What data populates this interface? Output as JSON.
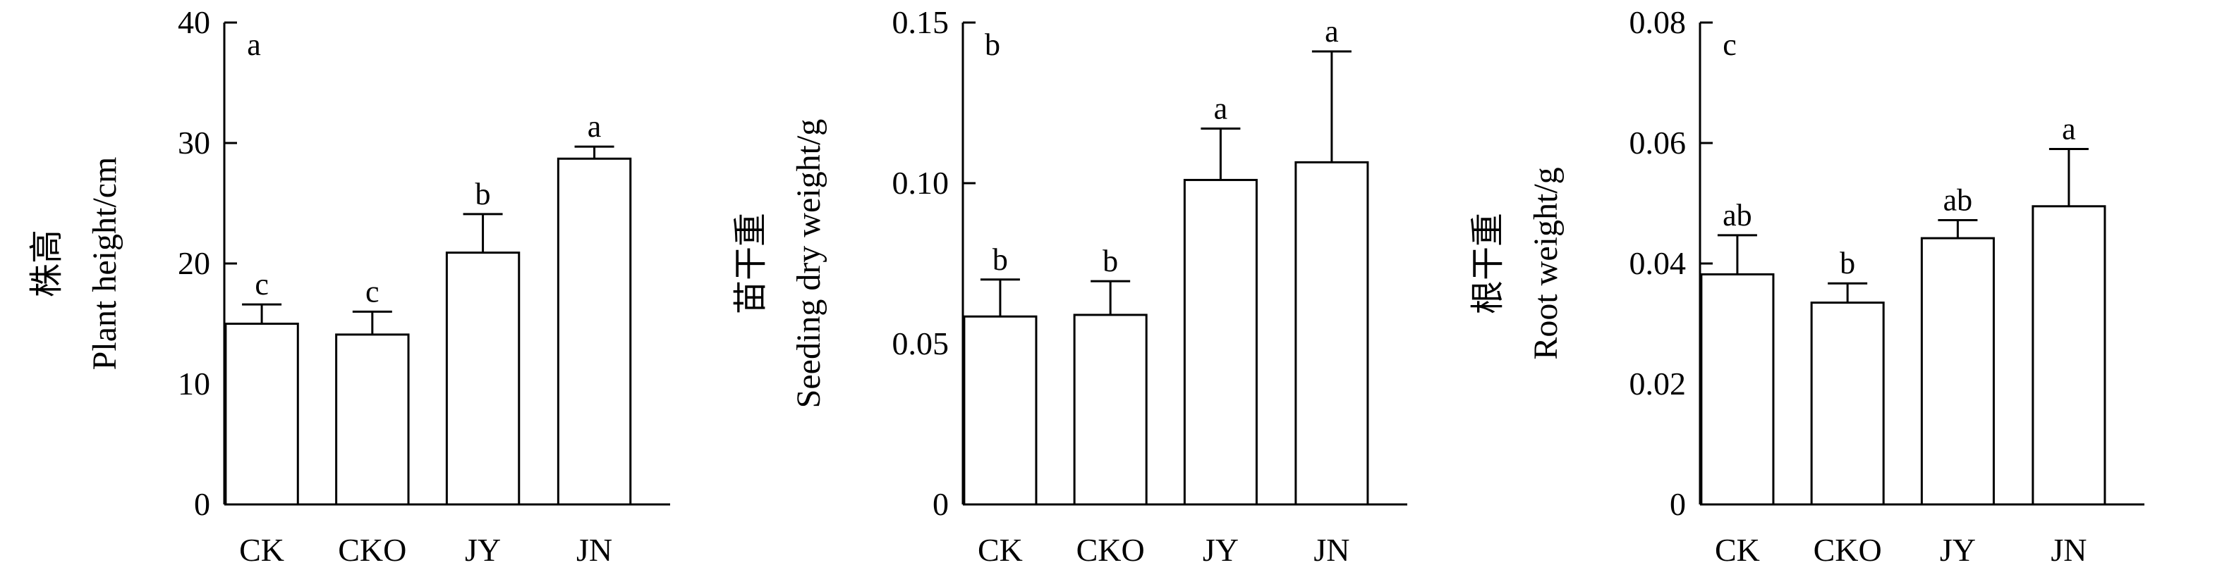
{
  "chart_data": [
    {
      "type": "bar",
      "panel": "a",
      "categories": [
        "CK",
        "CKO",
        "JY",
        "JN"
      ],
      "values": [
        15.0,
        14.1,
        20.9,
        28.7
      ],
      "errors": [
        1.6,
        1.9,
        3.2,
        1.0
      ],
      "significance": [
        "c",
        "c",
        "b",
        "a"
      ],
      "ylabel_cn": "株高",
      "ylabel_en": "Plant height/cm",
      "ylim": [
        0,
        40
      ],
      "yticks": [
        0,
        10,
        20,
        30,
        40
      ],
      "ytick_labels": [
        "0",
        "10",
        "20",
        "30",
        "40"
      ],
      "grid": false,
      "bar_color": "#ffffff",
      "edge_color": "#000000"
    },
    {
      "type": "bar",
      "panel": "b",
      "categories": [
        "CK",
        "CKO",
        "JY",
        "JN"
      ],
      "values": [
        0.0585,
        0.059,
        0.101,
        0.1065
      ],
      "errors": [
        0.0115,
        0.0105,
        0.016,
        0.0345
      ],
      "significance": [
        "b",
        "b",
        "a",
        "a"
      ],
      "ylabel_cn": "苗干重",
      "ylabel_en": "Seeding dry weight/g",
      "ylim": [
        0,
        0.15
      ],
      "yticks": [
        0,
        0.05,
        0.1,
        0.15
      ],
      "ytick_labels": [
        "0",
        "0.05",
        "0.10",
        "0.15"
      ],
      "grid": false,
      "bar_color": "#ffffff",
      "edge_color": "#000000"
    },
    {
      "type": "bar",
      "panel": "c",
      "categories": [
        "CK",
        "CKO",
        "JY",
        "JN"
      ],
      "values": [
        0.0382,
        0.0335,
        0.0442,
        0.0495
      ],
      "errors": [
        0.0065,
        0.0032,
        0.003,
        0.0095
      ],
      "significance": [
        "ab",
        "b",
        "ab",
        "a"
      ],
      "ylabel_cn": "根干重",
      "ylabel_en": "Root weight/g",
      "ylim": [
        0,
        0.08
      ],
      "yticks": [
        0,
        0.02,
        0.04,
        0.06,
        0.08
      ],
      "ytick_labels": [
        "0",
        "0.02",
        "0.04",
        "0.06",
        "0.08"
      ],
      "grid": false,
      "bar_color": "#ffffff",
      "edge_color": "#000000"
    }
  ]
}
